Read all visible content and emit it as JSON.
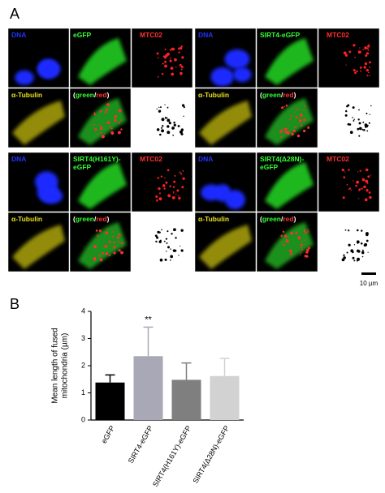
{
  "panel_a": {
    "label": "A",
    "groups": [
      {
        "dna": "DNA",
        "protein": [
          "eGFP"
        ],
        "mito": "MTC02",
        "tubulin": "α-Tubulin",
        "merge": [
          "(",
          "green",
          "/",
          "red",
          ")"
        ]
      },
      {
        "dna": "DNA",
        "protein": [
          "SIRT4-eGFP"
        ],
        "mito": "MTC02",
        "tubulin": "α-Tubulin",
        "merge": [
          "(",
          "green",
          "/",
          "red",
          ")"
        ]
      },
      {
        "dna": "DNA",
        "protein": [
          "SIRT4(H161Y)-",
          "eGFP"
        ],
        "mito": "MTC02",
        "tubulin": "α-Tubulin",
        "merge": [
          "(",
          "green",
          "/",
          "red",
          ")"
        ]
      },
      {
        "dna": "DNA",
        "protein": [
          "SIRT4(Δ28N)-",
          "eGFP"
        ],
        "mito": "MTC02",
        "tubulin": "α-Tubulin",
        "merge": [
          "(",
          "green",
          "/",
          "red",
          ")"
        ]
      }
    ],
    "scale_bar": "10 µm"
  },
  "chart_data": {
    "type": "bar",
    "panel_label": "B",
    "y_label": [
      "Mean length of fused",
      "mitochondria (µm)"
    ],
    "categories": [
      "eGFP",
      "SIRT4-eGFP",
      "SIRT4(H161Y)-eGFP",
      "SIRT4(Δ28N)-eGFP"
    ],
    "values": [
      1.38,
      2.35,
      1.48,
      1.62
    ],
    "errors": [
      0.28,
      1.07,
      0.62,
      0.65
    ],
    "colors": [
      "#000000",
      "#a8a8b6",
      "#7f7f7f",
      "#d2d2d2"
    ],
    "ylim": [
      0,
      4
    ],
    "yticks": [
      0,
      1,
      2,
      3,
      4
    ],
    "annotations": [
      {
        "text": "**",
        "category": "SIRT4-eGFP"
      }
    ]
  }
}
